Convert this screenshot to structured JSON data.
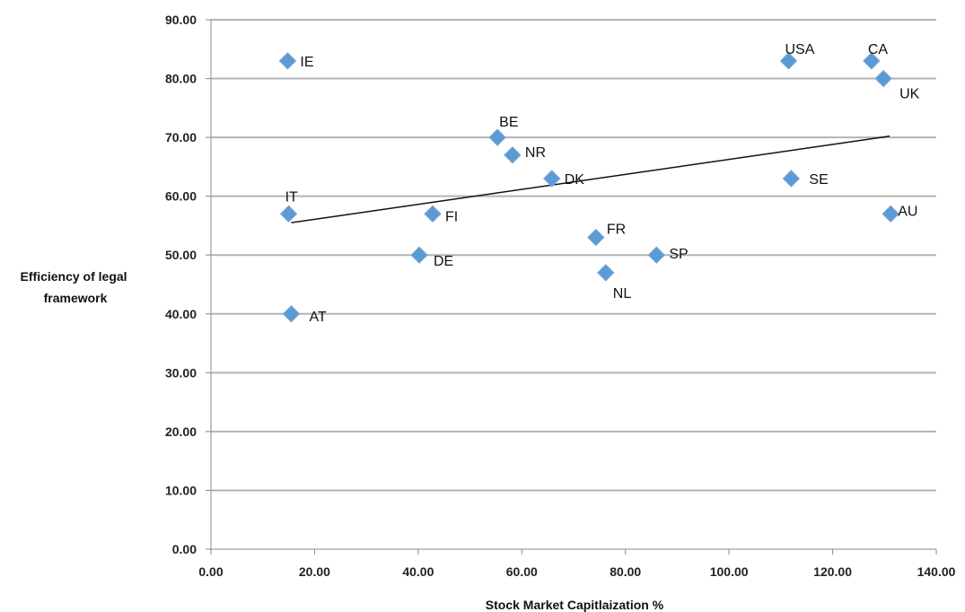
{
  "chart_data": {
    "type": "scatter",
    "title": "",
    "xlabel": "Stock Market Capitlaization %",
    "ylabel_lines": [
      "Efficiency of legal",
      "framework"
    ],
    "xlim": [
      0,
      140
    ],
    "ylim": [
      0,
      90
    ],
    "x_ticks": [
      "0.00",
      "20.00",
      "40.00",
      "60.00",
      "80.00",
      "100.00",
      "120.00",
      "140.00"
    ],
    "y_ticks": [
      "0.00",
      "10.00",
      "20.00",
      "30.00",
      "40.00",
      "50.00",
      "60.00",
      "70.00",
      "80.00",
      "90.00"
    ],
    "grid": "horizontal",
    "marker_color": "#5b9bd5",
    "trendline": {
      "type": "linear",
      "x": [
        15.5,
        131
      ],
      "y": [
        55.5,
        70.2
      ]
    },
    "points": [
      {
        "label": "IE",
        "x": 14.8,
        "y": 83
      },
      {
        "label": "USA",
        "x": 111.5,
        "y": 83
      },
      {
        "label": "CA",
        "x": 127.5,
        "y": 83
      },
      {
        "label": "UK",
        "x": 129.8,
        "y": 80
      },
      {
        "label": "BE",
        "x": 55.3,
        "y": 70
      },
      {
        "label": "NR",
        "x": 58.2,
        "y": 67
      },
      {
        "label": "DK",
        "x": 65.8,
        "y": 63
      },
      {
        "label": "SE",
        "x": 112,
        "y": 63
      },
      {
        "label": "IT",
        "x": 15,
        "y": 57
      },
      {
        "label": "FI",
        "x": 42.8,
        "y": 57
      },
      {
        "label": "AU",
        "x": 131.2,
        "y": 57
      },
      {
        "label": "FR",
        "x": 74.3,
        "y": 53
      },
      {
        "label": "DE",
        "x": 40.2,
        "y": 50
      },
      {
        "label": "SP",
        "x": 86,
        "y": 50
      },
      {
        "label": "NL",
        "x": 76.2,
        "y": 47
      },
      {
        "label": "AT",
        "x": 15.5,
        "y": 40
      }
    ]
  }
}
